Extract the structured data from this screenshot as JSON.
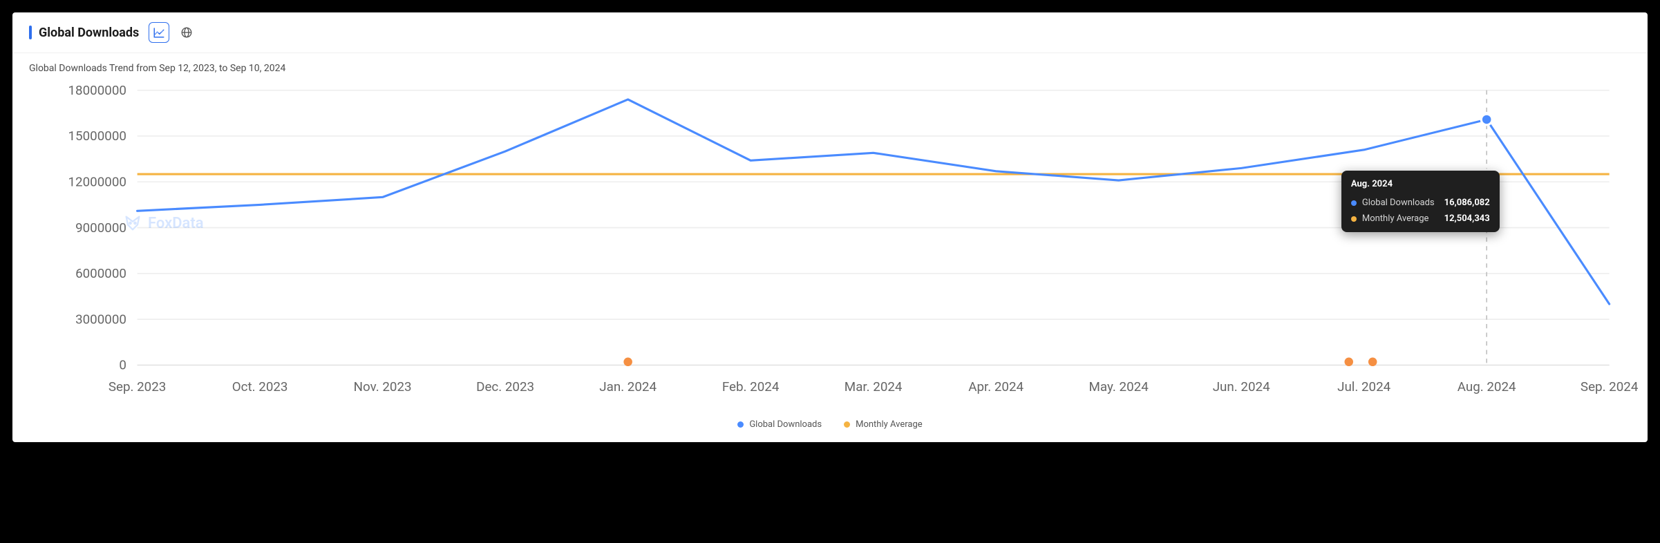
{
  "header": {
    "title": "Global Downloads",
    "toggles": {
      "chart": "line",
      "alt": "globe",
      "active": "line"
    }
  },
  "subtitle": "Global Downloads Trend from Sep 12, 2023, to Sep 10, 2024",
  "watermark": {
    "text": "FoxData"
  },
  "chart": {
    "type": "line",
    "background": "#ffffff",
    "grid_color": "#ededed",
    "axis_color": "#e2e2e2",
    "tick_font_size": 12,
    "tick_color": "#666666",
    "ylabel_align": "right",
    "ylim": [
      0,
      18000000
    ],
    "ytick_step": 3000000,
    "yticks": [
      0,
      3000000,
      6000000,
      9000000,
      12000000,
      15000000,
      18000000
    ],
    "categories": [
      "Sep. 2023",
      "Oct. 2023",
      "Nov. 2023",
      "Dec. 2023",
      "Jan. 2024",
      "Feb. 2024",
      "Mar. 2024",
      "Apr. 2024",
      "May. 2024",
      "Jun. 2024",
      "Jul. 2024",
      "Aug. 2024",
      "Sep. 2024"
    ],
    "series": [
      {
        "id": "downloads",
        "name": "Global Downloads",
        "color": "#4a8bff",
        "line_width": 2,
        "marker": "circle",
        "marker_size": 5,
        "values": [
          10100000,
          10500000,
          11000000,
          14000000,
          17400000,
          13400000,
          13900000,
          12700000,
          12100000,
          12900000,
          14100000,
          16086082,
          4000000
        ]
      },
      {
        "id": "avg",
        "name": "Monthly Average",
        "color": "#f5b342",
        "line_width": 2,
        "constant": 12504343
      }
    ],
    "hover": {
      "index": 11,
      "label": "Aug. 2024",
      "marker_color_downloads": "#4a8bff",
      "marker_color_avg": "#f5b342",
      "crosshair_color": "#bdbdbd",
      "rows": [
        {
          "dot": "#4a8bff",
          "name": "Global Downloads",
          "value": "16,086,082"
        },
        {
          "dot": "#f5b342",
          "name": "Monthly Average",
          "value": "12,504,343"
        }
      ]
    },
    "events": {
      "color": "#f58f42",
      "at_x": [
        "Jan. 2024",
        "Jul. 2024_left",
        "Jul. 2024_right"
      ]
    }
  },
  "legend": {
    "items": [
      {
        "id": "downloads",
        "name": "Global Downloads",
        "color": "#4a8bff"
      },
      {
        "id": "avg",
        "name": "Monthly Average",
        "color": "#f5b342"
      }
    ]
  }
}
